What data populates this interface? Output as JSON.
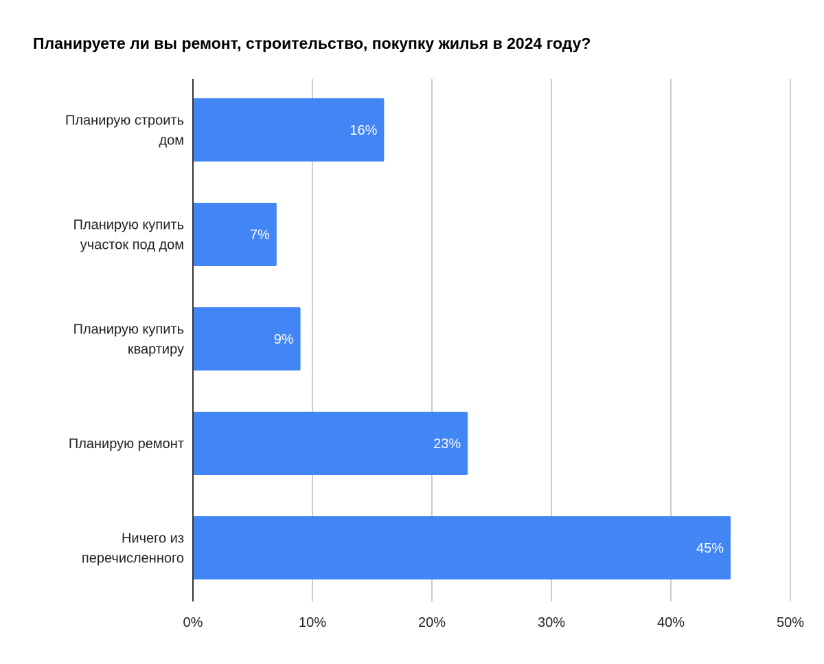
{
  "chart_data": {
    "type": "bar",
    "orientation": "horizontal",
    "title": "Планируете ли вы ремонт, строительство, покупку жилья в 2024 году?",
    "categories": [
      [
        "Планирую строить",
        "дом"
      ],
      [
        "Планирую купить",
        "участок под дом"
      ],
      [
        "Планирую купить",
        "квартиру"
      ],
      [
        "Планирую ремонт"
      ],
      [
        "Ничего из",
        "перечисленного"
      ]
    ],
    "values": [
      16,
      7,
      9,
      23,
      45
    ],
    "data_labels": [
      "16%",
      "7%",
      "9%",
      "23%",
      "45%"
    ],
    "xlim": [
      0,
      50
    ],
    "xticks": [
      0,
      10,
      20,
      30,
      40,
      50
    ],
    "xtick_labels": [
      "0%",
      "10%",
      "20%",
      "30%",
      "40%",
      "50%"
    ],
    "xlabel": "",
    "ylabel": "",
    "grid": true,
    "legend": "none",
    "colors": {
      "bar": "#4285f4",
      "grid": "#cccccc",
      "axis": "#333333"
    }
  }
}
